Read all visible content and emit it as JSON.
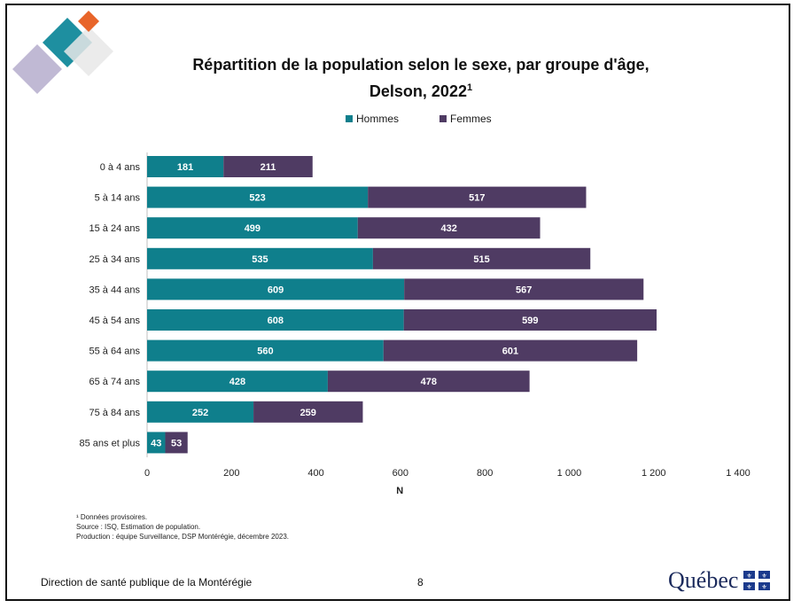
{
  "title": "Répartition de la population selon le sexe, par groupe d'âge,",
  "title_line2": "Delson, 2022",
  "title_sup": "1",
  "legend": [
    {
      "label": "Hommes",
      "color": "#0f7f8c"
    },
    {
      "label": "Femmes",
      "color": "#4f3b63"
    }
  ],
  "chart_data": {
    "type": "bar",
    "orientation": "horizontal",
    "stacked": true,
    "categories": [
      "0 à 4 ans",
      "5 à 14 ans",
      "15 à 24 ans",
      "25 à 34 ans",
      "35 à 44 ans",
      "45 à 54 ans",
      "55 à 64 ans",
      "65 à 74 ans",
      "75 à 84 ans",
      "85 ans et plus"
    ],
    "series": [
      {
        "name": "Hommes",
        "color": "#0f7f8c",
        "values": [
          181,
          523,
          499,
          535,
          609,
          608,
          560,
          428,
          252,
          43
        ]
      },
      {
        "name": "Femmes",
        "color": "#4f3b63",
        "values": [
          211,
          517,
          432,
          515,
          567,
          599,
          601,
          478,
          259,
          53
        ]
      }
    ],
    "xlabel": "N",
    "xlim": [
      0,
      1400
    ],
    "xticks": [
      0,
      200,
      400,
      600,
      800,
      1000,
      1200,
      1400
    ],
    "xtick_labels": [
      "0",
      "200",
      "400",
      "600",
      "800",
      "1 000",
      "1 200",
      "1 400"
    ],
    "grid": false,
    "legend_position": "top-center"
  },
  "notes": [
    "¹ Données provisoires.",
    "Source : ISQ, Estimation de population.",
    "Production : équipe Surveillance, DSP Montérégie, décembre 2023."
  ],
  "footer": {
    "organization": "Direction de santé publique de la Montérégie",
    "page_number": "8",
    "brand": "Québec"
  }
}
